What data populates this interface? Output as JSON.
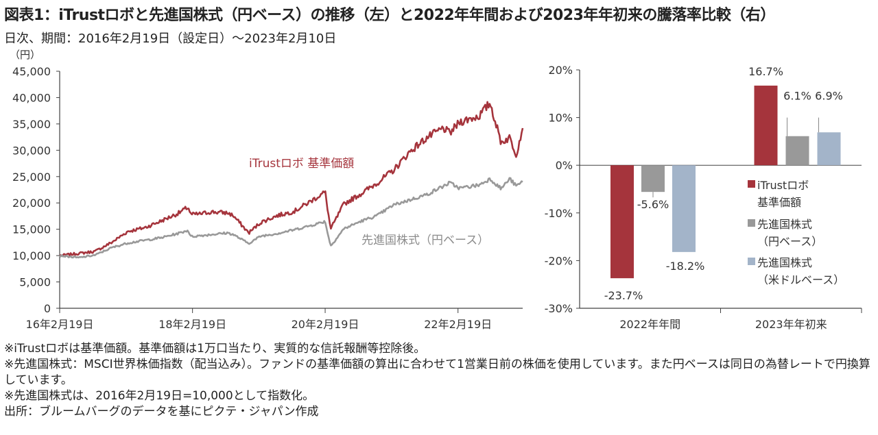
{
  "title": "図表1：iTrustロボと先進国株式（円ベース）の推移（左）と2022年年間および2023年年初来の騰落率比較（右）",
  "subtitle": "日次、期間：2016年2月19日（設定日）～2023年2月10日",
  "colors": {
    "robo": "#a5343c",
    "world_yen": "#999999",
    "world_usd": "#a3b4c9",
    "axis": "#404040",
    "grid": "#cccccc"
  },
  "chart_data": [
    {
      "type": "line",
      "ylabel": "（円）",
      "ylim": [
        0,
        45000
      ],
      "yticks": [
        "0",
        "5,000",
        "10,000",
        "15,000",
        "20,000",
        "25,000",
        "30,000",
        "35,000",
        "40,000",
        "45,000"
      ],
      "xticks": [
        "16年2月19日",
        "18年2月19日",
        "20年2月19日",
        "22年2月19日"
      ],
      "series": [
        {
          "name": "iTrustロボ 基準価額",
          "color": "#a5343c",
          "x": [
            "2016-02-19",
            "2016-06-01",
            "2016-09-01",
            "2016-12-01",
            "2017-03-01",
            "2017-06-01",
            "2017-09-01",
            "2017-12-01",
            "2018-01-26",
            "2018-02-10",
            "2018-04-01",
            "2018-06-01",
            "2018-09-01",
            "2018-10-01",
            "2018-12-25",
            "2019-03-01",
            "2019-06-01",
            "2019-09-01",
            "2019-12-01",
            "2020-02-19",
            "2020-03-20",
            "2020-06-01",
            "2020-09-01",
            "2020-12-01",
            "2021-03-01",
            "2021-06-01",
            "2021-09-01",
            "2021-12-01",
            "2022-01-04",
            "2022-03-01",
            "2022-06-15",
            "2022-08-15",
            "2022-10-14",
            "2022-12-01",
            "2023-01-05",
            "2023-02-10"
          ],
          "values": [
            10000,
            10400,
            10800,
            12500,
            14600,
            15300,
            16600,
            18000,
            19200,
            17800,
            17900,
            18300,
            18100,
            17600,
            14300,
            16300,
            17600,
            18400,
            20300,
            22100,
            15000,
            19800,
            21700,
            23800,
            26200,
            29800,
            32400,
            34200,
            33200,
            35400,
            36500,
            39000,
            31500,
            32400,
            29200,
            34200
          ]
        },
        {
          "name": "先進国株式（円ベース）",
          "color": "#999999",
          "x": [
            "2016-02-19",
            "2016-06-01",
            "2016-09-01",
            "2016-12-01",
            "2017-03-01",
            "2017-06-01",
            "2017-09-01",
            "2017-12-01",
            "2018-01-26",
            "2018-02-10",
            "2018-06-01",
            "2018-09-01",
            "2018-10-01",
            "2018-12-25",
            "2019-03-01",
            "2019-06-01",
            "2019-09-01",
            "2019-12-01",
            "2020-02-19",
            "2020-03-20",
            "2020-06-01",
            "2020-09-01",
            "2020-12-01",
            "2021-03-01",
            "2021-06-01",
            "2021-09-01",
            "2021-12-01",
            "2022-01-04",
            "2022-03-01",
            "2022-06-15",
            "2022-08-15",
            "2022-10-14",
            "2022-12-01",
            "2023-01-05",
            "2023-02-10"
          ],
          "values": [
            10000,
            9600,
            10100,
            11500,
            12400,
            12900,
            13400,
            14200,
            14800,
            13600,
            14000,
            14300,
            14000,
            12300,
            13700,
            14200,
            14900,
            15700,
            16500,
            11800,
            15100,
            16500,
            17600,
            19600,
            20600,
            21600,
            23200,
            23800,
            22800,
            23400,
            24600,
            22700,
            24600,
            23200,
            24000
          ]
        }
      ]
    },
    {
      "type": "bar",
      "ylabel": "",
      "ylim": [
        -30,
        20
      ],
      "yticks": [
        "-30%",
        "-20%",
        "-10%",
        "0%",
        "10%",
        "20%"
      ],
      "categories": [
        "2022年年間",
        "2023年年初来"
      ],
      "series": [
        {
          "name": "iTrustロボ 基準価額",
          "color": "#a5343c",
          "values": [
            -23.7,
            16.7
          ],
          "labels": [
            "-23.7%",
            "16.7%"
          ]
        },
        {
          "name": "先進国株式 （円ベース）",
          "color": "#999999",
          "values": [
            -5.6,
            6.1
          ],
          "labels": [
            "-5.6%",
            "6.1%"
          ]
        },
        {
          "name": "先進国株式 （米ドルベース）",
          "color": "#a3b4c9",
          "values": [
            -18.2,
            6.9
          ],
          "labels": [
            "-18.2%",
            "6.9%"
          ]
        }
      ],
      "legend": [
        {
          "line1": "iTrustロボ",
          "line2": "基準価額"
        },
        {
          "line1": "先進国株式",
          "line2": "（円ベース）"
        },
        {
          "line1": "先進国株式",
          "line2": "（米ドルベース）"
        }
      ],
      "legend_position": "right"
    }
  ],
  "notes": [
    "※iTrustロボは基準価額。基準価額は1万口当たり、実質的な信託報酬等控除後。",
    "※先進国株式：MSCI世界株価指数（配当込み）。ファンドの基準価額の算出に合わせて1営業日前の株価を使用しています。また円ベースは同日の為替レートで円換算しています。",
    "※先進国株式は、2016年2月19日=10,000として指数化。",
    "出所：ブルームバーグのデータを基にピクテ・ジャパン作成"
  ]
}
